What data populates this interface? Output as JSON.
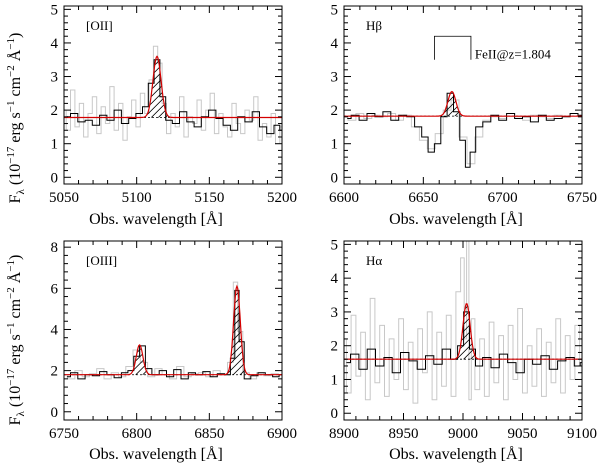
{
  "figure": {
    "xlabel": "Obs. wavelength [Å]",
    "ylabel": {
      "main": "F",
      "sub": "λ",
      "rest": " (10",
      "e1": "−17",
      "mid": " erg s",
      "e2": "−1",
      "cm": " cm",
      "e3": "−2",
      "ang": " Å",
      "e4": "−1",
      "close": ")"
    }
  },
  "chart_data": [
    {
      "type": "line",
      "panel": "top-left",
      "label": "[OII]",
      "xlim": [
        5050,
        5200
      ],
      "ylim": [
        -0.2,
        5.1
      ],
      "xticks": [
        5050,
        5100,
        5150,
        5200
      ],
      "yticks": [
        0,
        1,
        2,
        3,
        4,
        5
      ],
      "continuum": 1.78,
      "lines": [
        {
          "center": 5114,
          "peak": 3.6,
          "sigma": 2.8
        }
      ],
      "spectrum_binned": {
        "x": [
          5052,
          5057,
          5062,
          5067,
          5072,
          5077,
          5082,
          5087,
          5092,
          5097,
          5102,
          5106,
          5110,
          5114,
          5118,
          5122,
          5127,
          5132,
          5137,
          5142,
          5147,
          5152,
          5157,
          5162,
          5167,
          5172,
          5177,
          5182,
          5187,
          5192,
          5197,
          5200
        ],
        "y": [
          1.8,
          1.9,
          1.65,
          1.7,
          1.55,
          1.85,
          1.7,
          2.0,
          1.6,
          1.75,
          1.9,
          2.1,
          2.8,
          3.5,
          2.4,
          1.7,
          1.6,
          1.95,
          1.65,
          1.5,
          1.8,
          2.0,
          1.75,
          1.55,
          1.4,
          1.8,
          1.65,
          1.95,
          1.5,
          1.3,
          1.55,
          1.4
        ]
      },
      "spectrum_raw": {
        "x": [
          5050,
          5053,
          5056,
          5059,
          5062,
          5065,
          5068,
          5071,
          5074,
          5077,
          5080,
          5083,
          5086,
          5089,
          5092,
          5095,
          5098,
          5101,
          5104,
          5107,
          5110,
          5113,
          5116,
          5119,
          5122,
          5125,
          5128,
          5131,
          5134,
          5137,
          5140,
          5143,
          5146,
          5149,
          5152,
          5155,
          5158,
          5161,
          5164,
          5167,
          5170,
          5173,
          5176,
          5179,
          5182,
          5185,
          5188,
          5191,
          5194,
          5197,
          5200
        ],
        "y": [
          2.0,
          1.4,
          2.6,
          1.5,
          2.2,
          1.2,
          1.9,
          2.4,
          1.3,
          2.1,
          1.6,
          2.7,
          1.4,
          2.2,
          1.1,
          1.8,
          2.3,
          1.5,
          2.5,
          1.9,
          2.9,
          3.9,
          3.4,
          2.2,
          1.3,
          1.9,
          1.5,
          2.4,
          1.2,
          1.8,
          1.6,
          2.3,
          1.4,
          2.0,
          2.5,
          1.3,
          1.9,
          1.5,
          1.2,
          2.2,
          1.6,
          1.3,
          2.0,
          1.7,
          2.4,
          1.1,
          1.6,
          1.2,
          1.9,
          1.0,
          1.5
        ]
      }
    },
    {
      "type": "line",
      "panel": "top-right",
      "label": "Hβ",
      "annotation": "FeII@z=1.804",
      "xlim": [
        6600,
        6750
      ],
      "ylim": [
        -0.2,
        5.1
      ],
      "xticks": [
        6600,
        6650,
        6700,
        6750
      ],
      "yticks": [
        0,
        1,
        2,
        3,
        4,
        5
      ],
      "continuum": 1.82,
      "lines": [
        {
          "center": 6668,
          "peak": 2.55,
          "sigma": 2.5
        }
      ],
      "absorption_markers": [
        6657,
        6680
      ],
      "spectrum_binned": {
        "x": [
          6602,
          6607,
          6612,
          6617,
          6622,
          6627,
          6632,
          6637,
          6642,
          6647,
          6651,
          6655,
          6659,
          6663,
          6667,
          6671,
          6675,
          6678,
          6681,
          6685,
          6690,
          6695,
          6700,
          6705,
          6710,
          6715,
          6720,
          6725,
          6730,
          6735,
          6740,
          6745,
          6750
        ],
        "y": [
          1.75,
          1.85,
          1.7,
          1.9,
          1.8,
          1.95,
          1.7,
          1.85,
          1.8,
          1.5,
          1.2,
          0.75,
          1.0,
          1.8,
          2.5,
          1.95,
          1.1,
          0.3,
          0.75,
          1.5,
          1.65,
          1.85,
          1.7,
          1.9,
          1.75,
          1.8,
          1.65,
          1.85,
          1.7,
          1.75,
          1.8,
          1.9,
          1.85
        ]
      },
      "spectrum_raw": {
        "x": [
          6600,
          6605,
          6610,
          6615,
          6620,
          6625,
          6630,
          6635,
          6640,
          6645,
          6650,
          6655,
          6660,
          6665,
          6670,
          6675,
          6680,
          6685,
          6690,
          6695,
          6700,
          6705,
          6710,
          6715,
          6720,
          6725,
          6730,
          6735,
          6740,
          6745,
          6750
        ],
        "y": [
          1.8,
          1.7,
          1.9,
          1.75,
          1.85,
          1.8,
          1.9,
          1.7,
          1.85,
          1.5,
          1.1,
          0.85,
          1.3,
          2.0,
          2.3,
          1.2,
          0.4,
          1.2,
          1.7,
          1.8,
          1.75,
          1.9,
          1.8,
          1.7,
          1.85,
          1.8,
          1.75,
          1.85,
          1.8,
          1.9,
          1.8
        ]
      }
    },
    {
      "type": "line",
      "panel": "bottom-left",
      "label": "[OIII]",
      "xlim": [
        6750,
        6900
      ],
      "ylim": [
        -0.4,
        8.3
      ],
      "xticks": [
        6750,
        6800,
        6850,
        6900
      ],
      "yticks": [
        0,
        2,
        4,
        6,
        8
      ],
      "continuum": 1.8,
      "lines": [
        {
          "center": 6802,
          "peak": 3.25,
          "sigma": 2.3
        },
        {
          "center": 6869,
          "peak": 6.1,
          "sigma": 2.3
        }
      ],
      "spectrum_binned": {
        "x": [
          6752,
          6757,
          6762,
          6767,
          6772,
          6777,
          6782,
          6787,
          6792,
          6796,
          6800,
          6804,
          6808,
          6813,
          6818,
          6823,
          6828,
          6833,
          6838,
          6843,
          6848,
          6853,
          6858,
          6863,
          6866,
          6869,
          6872,
          6876,
          6881,
          6886,
          6891,
          6896,
          6900
        ],
        "y": [
          1.7,
          1.9,
          1.6,
          1.8,
          1.75,
          1.95,
          1.8,
          1.65,
          1.9,
          2.0,
          2.7,
          3.2,
          2.1,
          1.8,
          2.0,
          1.7,
          2.05,
          1.6,
          1.9,
          1.8,
          1.95,
          1.7,
          1.85,
          1.8,
          2.6,
          5.9,
          3.4,
          1.6,
          1.75,
          1.9,
          1.8,
          1.7,
          1.8
        ]
      },
      "spectrum_raw": {
        "x": [
          6750,
          6755,
          6760,
          6765,
          6770,
          6775,
          6780,
          6785,
          6790,
          6795,
          6800,
          6805,
          6810,
          6815,
          6820,
          6825,
          6830,
          6835,
          6840,
          6845,
          6850,
          6855,
          6860,
          6865,
          6868,
          6871,
          6875,
          6880,
          6885,
          6890,
          6895,
          6900
        ],
        "y": [
          1.8,
          1.6,
          2.0,
          1.7,
          1.85,
          2.1,
          1.6,
          1.9,
          1.7,
          2.2,
          3.0,
          2.4,
          1.7,
          2.1,
          1.8,
          1.6,
          2.2,
          1.7,
          1.85,
          1.9,
          1.7,
          2.0,
          1.8,
          2.4,
          6.3,
          3.9,
          1.9,
          1.6,
          1.9,
          1.75,
          1.85,
          1.8
        ]
      }
    },
    {
      "type": "line",
      "panel": "bottom-right",
      "label": "Hα",
      "xlim": [
        8900,
        9100
      ],
      "ylim": [
        -0.2,
        5.1
      ],
      "xticks": [
        8900,
        8950,
        9000,
        9050,
        9100
      ],
      "yticks": [
        0,
        1,
        2,
        3,
        4,
        5
      ],
      "continuum": 1.6,
      "lines": [
        {
          "center": 9003,
          "peak": 3.25,
          "sigma": 3.0
        }
      ],
      "spectrum_binned": {
        "x": [
          8902,
          8909,
          8916,
          8923,
          8930,
          8937,
          8944,
          8951,
          8958,
          8965,
          8972,
          8979,
          8986,
          8993,
          8998,
          9003,
          9008,
          9013,
          9020,
          9027,
          9034,
          9041,
          9048,
          9055,
          9062,
          9069,
          9076,
          9083,
          9090,
          9097,
          9100
        ],
        "y": [
          1.5,
          1.75,
          1.3,
          1.9,
          1.4,
          1.65,
          1.2,
          1.8,
          1.55,
          1.3,
          1.7,
          1.45,
          1.9,
          1.6,
          2.0,
          3.0,
          1.9,
          1.4,
          1.65,
          1.35,
          1.75,
          1.5,
          1.2,
          1.6,
          1.45,
          1.7,
          1.3,
          1.55,
          1.65,
          1.4,
          1.5
        ]
      },
      "spectrum_raw": {
        "x": [
          8900,
          8904,
          8908,
          8912,
          8916,
          8920,
          8924,
          8928,
          8932,
          8936,
          8940,
          8944,
          8948,
          8952,
          8956,
          8960,
          8964,
          8968,
          8972,
          8976,
          8980,
          8984,
          8988,
          8992,
          8996,
          9000,
          9002,
          9004,
          9006,
          9008,
          9012,
          9016,
          9020,
          9024,
          9028,
          9032,
          9036,
          9040,
          9044,
          9048,
          9052,
          9056,
          9060,
          9064,
          9068,
          9072,
          9076,
          9080,
          9084,
          9088,
          9092,
          9096,
          9100
        ],
        "y": [
          2.2,
          0.6,
          2.9,
          1.1,
          2.4,
          0.4,
          3.4,
          0.9,
          2.6,
          0.5,
          2.2,
          1.0,
          2.8,
          0.7,
          2.1,
          0.3,
          2.5,
          1.2,
          3.0,
          0.4,
          2.4,
          0.8,
          2.9,
          0.5,
          3.6,
          4.6,
          2.2,
          5.1,
          0.4,
          2.8,
          0.7,
          2.2,
          0.5,
          2.7,
          0.9,
          2.3,
          0.4,
          2.6,
          1.0,
          3.1,
          0.6,
          2.0,
          0.8,
          2.5,
          0.5,
          2.1,
          0.9,
          2.8,
          0.6,
          2.3,
          1.0,
          2.6,
          1.4
        ]
      }
    }
  ]
}
